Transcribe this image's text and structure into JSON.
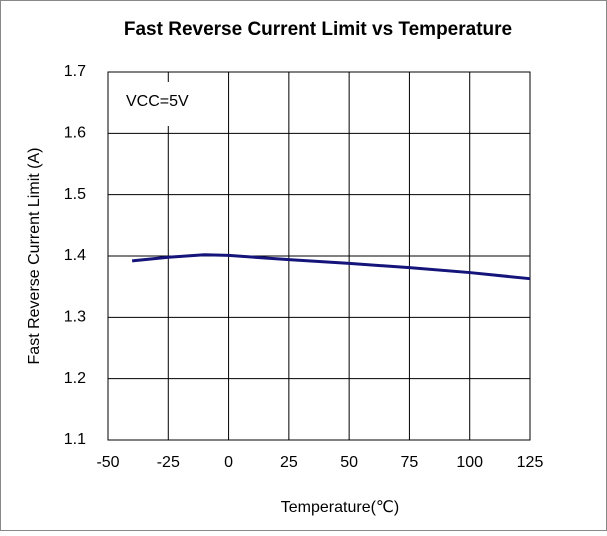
{
  "chart_data": {
    "type": "line",
    "title": "Fast Reverse Current Limit vs Temperature",
    "x_label": "Temperature(℃)",
    "y_label": "Fast Reverse Current Limit (A)",
    "annotation": "VCC=5V",
    "x": [
      -40,
      -25,
      -10,
      0,
      25,
      50,
      75,
      100,
      125
    ],
    "series": [
      {
        "name": "VCC=5V",
        "color": "#14147a",
        "values": [
          1.392,
          1.398,
          1.402,
          1.401,
          1.394,
          1.388,
          1.381,
          1.373,
          1.363
        ]
      }
    ],
    "xlim": [
      -50,
      125
    ],
    "xticks": [
      -50,
      -25,
      0,
      25,
      50,
      75,
      100,
      125
    ],
    "ylim": [
      1.1,
      1.7
    ],
    "yticks": [
      1.1,
      1.2,
      1.3,
      1.4,
      1.5,
      1.6,
      1.7
    ],
    "grid": true
  }
}
